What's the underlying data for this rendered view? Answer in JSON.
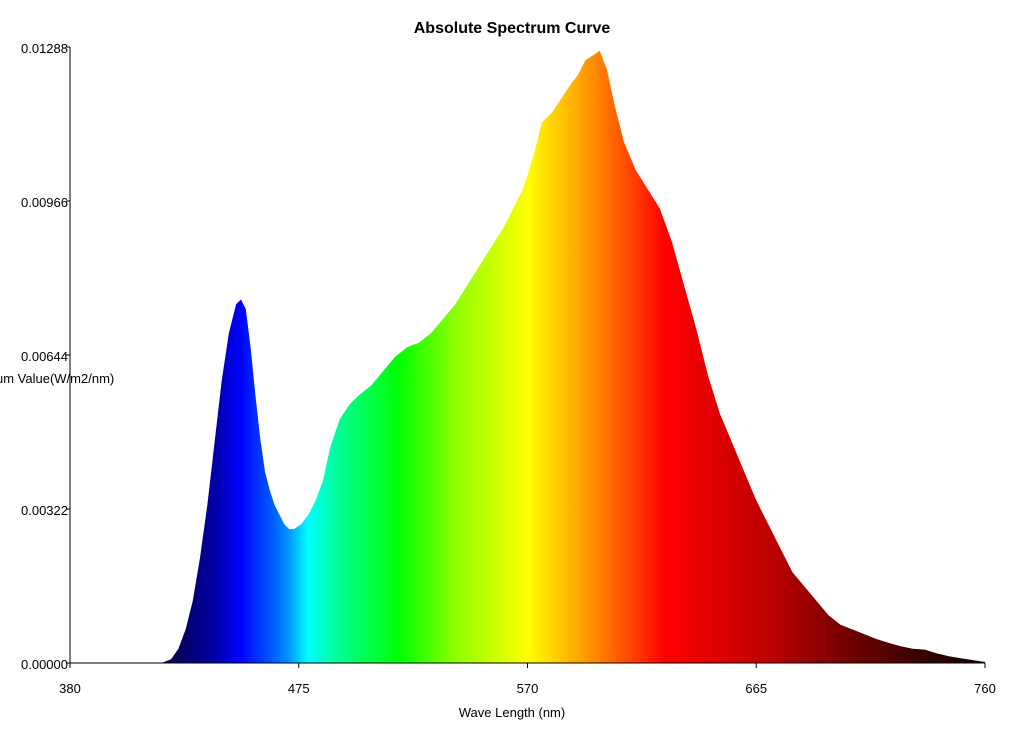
{
  "chart_data": {
    "type": "area",
    "title": "Absolute Spectrum Curve",
    "xlabel": "Wave Length (nm)",
    "ylabel": "um Value(W/m2/nm)",
    "xlim": [
      380,
      760
    ],
    "ylim": [
      0,
      0.01288
    ],
    "x_ticks": [
      "380",
      "475",
      "570",
      "665",
      "760"
    ],
    "y_ticks": [
      "0.00000",
      "0.00322",
      "0.00644",
      "0.00966",
      "0.01288"
    ],
    "grid": false,
    "fill": "spectral-gradient",
    "series": [
      {
        "x": [
          418,
          422,
          425,
          428,
          431,
          434,
          437,
          440,
          443,
          446,
          449,
          451,
          453,
          455,
          457,
          459,
          461,
          463,
          465,
          467,
          469,
          471,
          473,
          476,
          479,
          482,
          485,
          488,
          492,
          496,
          500,
          505,
          510,
          515,
          520,
          525,
          530,
          535,
          540,
          545,
          550,
          555,
          560,
          565,
          568,
          570,
          573,
          576,
          580,
          584,
          588,
          591,
          594,
          597,
          600,
          603,
          606,
          610,
          615,
          620,
          625,
          630,
          635,
          640,
          645,
          650,
          655,
          660,
          665,
          670,
          675,
          680,
          685,
          690,
          695,
          700,
          705,
          710,
          715,
          720,
          725,
          730,
          735,
          740,
          745,
          750,
          755,
          760
        ],
        "y": [
          0.0,
          8e-05,
          0.0003,
          0.0007,
          0.0013,
          0.0022,
          0.0033,
          0.0046,
          0.0059,
          0.0069,
          0.0075,
          0.0076,
          0.0074,
          0.0066,
          0.0056,
          0.0047,
          0.004,
          0.0036,
          0.0033,
          0.0031,
          0.0029,
          0.0028,
          0.0028,
          0.0029,
          0.0031,
          0.0034,
          0.0038,
          0.0045,
          0.0051,
          0.0054,
          0.0056,
          0.0058,
          0.0061,
          0.0064,
          0.0066,
          0.0067,
          0.0069,
          0.0072,
          0.0075,
          0.0079,
          0.0083,
          0.0087,
          0.0091,
          0.0096,
          0.0099,
          0.0102,
          0.0107,
          0.0113,
          0.0115,
          0.0118,
          0.0121,
          0.0123,
          0.0126,
          0.0127,
          0.0128,
          0.0124,
          0.0117,
          0.0109,
          0.0103,
          0.0099,
          0.0095,
          0.0088,
          0.0079,
          0.007,
          0.006,
          0.0052,
          0.0046,
          0.004,
          0.0034,
          0.0029,
          0.0024,
          0.0019,
          0.0016,
          0.0013,
          0.001,
          0.0008,
          0.0007,
          0.0006,
          0.0005,
          0.00042,
          0.00035,
          0.0003,
          0.00028,
          0.0002,
          0.00014,
          0.0001,
          6e-05,
          2e-05
        ]
      }
    ]
  }
}
